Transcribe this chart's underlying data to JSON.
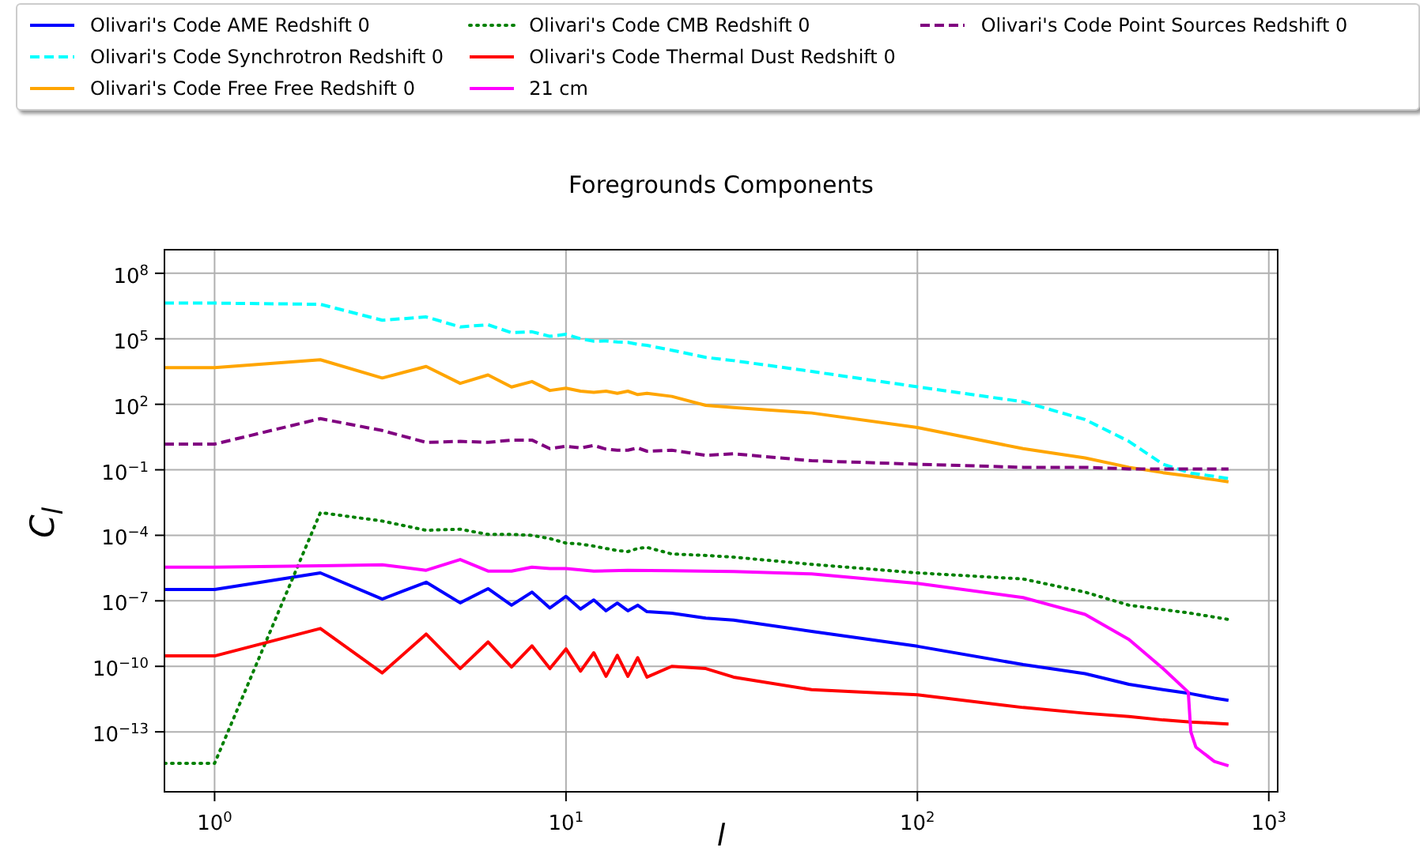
{
  "chart_data": {
    "type": "line",
    "title": "Foregrounds Components",
    "xlabel": "l",
    "ylabel": "C$_{l}$",
    "log": "xy",
    "grid": true,
    "legend": "top",
    "x": [
      0.72,
      1,
      2,
      3,
      4,
      5,
      6,
      7,
      8,
      9,
      10,
      11,
      12,
      13,
      14,
      15,
      16,
      17,
      20,
      25,
      30,
      50,
      100,
      200,
      300,
      400,
      500,
      600,
      700,
      768
    ],
    "xlim": [
      0.72,
      1060
    ],
    "ylim": [
      1.8e-16,
      1200000000.0
    ],
    "xticks": [
      {
        "value": 1,
        "label": "10$^{0}$"
      },
      {
        "value": 10,
        "label": "10$^{1}$"
      },
      {
        "value": 100,
        "label": "10$^{2}$"
      },
      {
        "value": 1000,
        "label": "10$^{3}$"
      }
    ],
    "yticks": [
      {
        "value": 100000000.0,
        "label": "10$^{8}$"
      },
      {
        "value": 100000.0,
        "label": "10$^{5}$"
      },
      {
        "value": 100,
        "label": "10$^{2}$"
      },
      {
        "value": 0.1,
        "label": "10$^{−1}$"
      },
      {
        "value": 0.0001,
        "label": "10$^{−4}$"
      },
      {
        "value": 1e-07,
        "label": "10$^{−7}$"
      },
      {
        "value": 1e-10,
        "label": "10$^{−10}$"
      },
      {
        "value": 1e-13,
        "label": "10$^{−13}$"
      }
    ],
    "series": [
      {
        "name": "Olivari's Code AME Redshift 0",
        "color": "#0000ff",
        "line_style": "solid",
        "values": [
          3.3e-07,
          3.3e-07,
          1.9e-06,
          1.2e-07,
          7.1e-07,
          8.1e-08,
          3.6e-07,
          6.3e-08,
          2.5e-07,
          4.7e-08,
          1.6e-07,
          4.2e-08,
          1.1e-07,
          3.5e-08,
          7.9e-08,
          3.5e-08,
          6.3e-08,
          3.2e-08,
          2.7e-08,
          1.6e-08,
          1.3e-08,
          4e-09,
          8.3e-10,
          1.2e-10,
          4.6e-11,
          1.5e-11,
          8.5e-12,
          5.6e-12,
          3.5e-12,
          2.8e-12
        ]
      },
      {
        "name": "Olivari's Code Synchrotron Redshift 0",
        "color": "#00ffff",
        "line_style": "dashed",
        "values": [
          4300000.0,
          4300000.0,
          3800000.0,
          710000.0,
          1000000.0,
          350000.0,
          440000.0,
          190000.0,
          210000.0,
          130000.0,
          160000.0,
          100000.0,
          78000.0,
          79000.0,
          71000.0,
          69000.0,
          56000.0,
          50000.0,
          30000.0,
          14000.0,
          10000.0,
          3200.0,
          630,
          130,
          20,
          2,
          0.18,
          0.071,
          0.05,
          0.04
        ]
      },
      {
        "name": "Olivari's Code Free Free Redshift 0",
        "color": "#ffa500",
        "line_style": "solid",
        "values": [
          4800.0,
          4800.0,
          11000.0,
          1600.0,
          5400.0,
          910,
          2200.0,
          620,
          1100.0,
          430,
          550,
          400,
          350,
          400,
          320,
          400,
          280,
          320,
          230,
          89,
          71,
          40,
          8.7,
          0.93,
          0.35,
          0.13,
          0.074,
          0.05,
          0.035,
          0.028
        ]
      },
      {
        "name": "Olivari's Code CMB Redshift 0",
        "color": "#008000",
        "line_style": "dotted",
        "values": [
          3.6e-15,
          3.6e-15,
          0.0011,
          0.00045,
          0.00017,
          0.00019,
          0.00011,
          0.00011,
          0.0001,
          7.1e-05,
          4.4e-05,
          4e-05,
          3.2e-05,
          2.5e-05,
          2e-05,
          1.8e-05,
          2.5e-05,
          2.8e-05,
          1.4e-05,
          1.2e-05,
          1e-05,
          4.7e-06,
          1.9e-06,
          1e-06,
          2.5e-07,
          6.3e-08,
          4e-08,
          2.7e-08,
          1.8e-08,
          1.4e-08
        ]
      },
      {
        "name": "Olivari's Code Thermal Dust Redshift 0",
        "color": "#ff0000",
        "line_style": "solid",
        "values": [
          3e-10,
          3e-10,
          5.4e-09,
          5e-11,
          3e-09,
          7.9e-11,
          1.3e-09,
          9.3e-11,
          8.7e-10,
          7.9e-11,
          6.3e-10,
          6e-11,
          4.2e-10,
          3.5e-11,
          3.2e-10,
          3.5e-11,
          2.5e-10,
          3.2e-11,
          1e-10,
          7.9e-11,
          3.2e-11,
          8.5e-12,
          5e-12,
          1.3e-12,
          7.1e-13,
          5e-13,
          3.5e-13,
          2.8e-13,
          2.5e-13,
          2.3e-13
        ]
      },
      {
        "name": "21 cm",
        "color": "#ff00ff",
        "line_style": "solid",
        "x": [
          0.72,
          1,
          2,
          3,
          4,
          5,
          6,
          7,
          8,
          9,
          10,
          12,
          15,
          20,
          30,
          50,
          100,
          200,
          300,
          400,
          500,
          590,
          600,
          620,
          700,
          768
        ],
        "values": [
          3.5e-06,
          3.5e-06,
          4e-06,
          4.5e-06,
          2.5e-06,
          7.8e-06,
          2.3e-06,
          2.3e-06,
          3.5e-06,
          3e-06,
          3e-06,
          2.3e-06,
          2.5e-06,
          2.4e-06,
          2.2e-06,
          1.7e-06,
          6.3e-07,
          1.4e-07,
          2.4e-08,
          1.7e-09,
          7.9e-11,
          6.6e-12,
          1e-13,
          2e-14,
          4.4e-15,
          2.8e-15
        ]
      },
      {
        "name": "Olivari's Code Point Sources Redshift 0",
        "color": "#800080",
        "line_style": "dashed",
        "values": [
          1.5,
          1.5,
          22,
          6.3,
          1.8,
          2,
          1.8,
          2.3,
          2.3,
          0.93,
          1.2,
          1,
          1.3,
          0.89,
          0.79,
          0.79,
          1,
          0.71,
          0.79,
          0.46,
          0.54,
          0.26,
          0.18,
          0.13,
          0.13,
          0.11,
          0.11,
          0.11,
          0.11,
          0.11
        ]
      }
    ]
  }
}
